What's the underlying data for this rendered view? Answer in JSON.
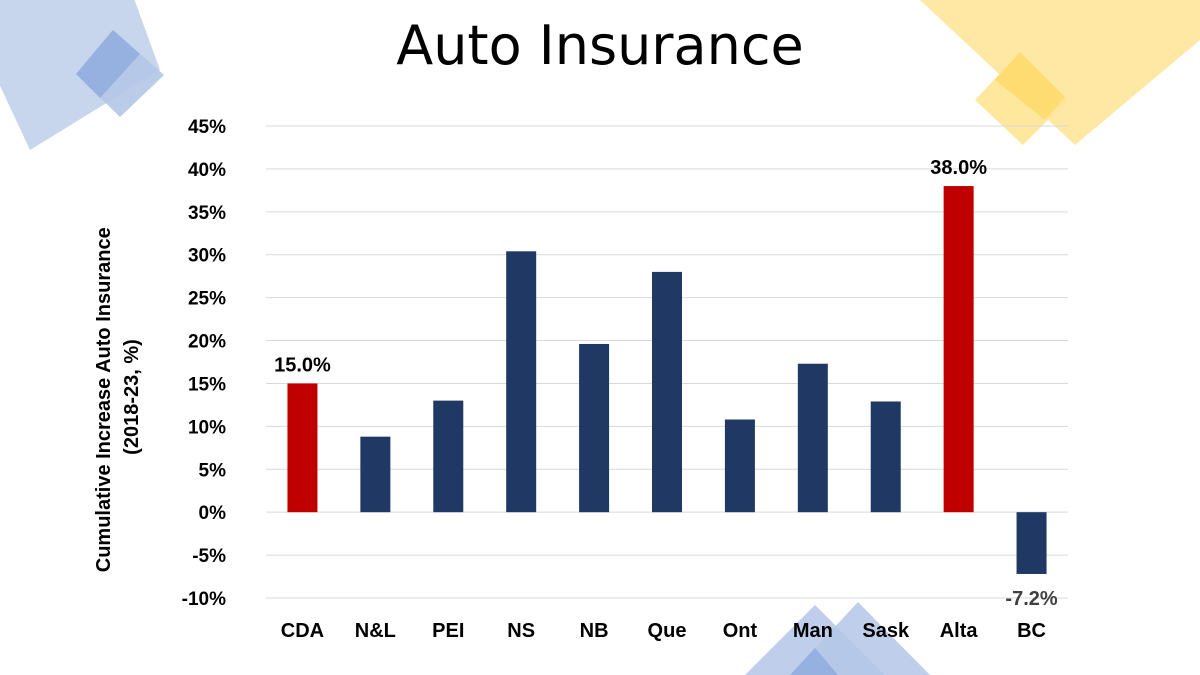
{
  "slide": {
    "title": "Auto Insurance"
  },
  "colors": {
    "bar_default": "#203864",
    "bar_highlight": "#c00000",
    "deco_blue": "#b4c7e7",
    "deco_blue_dark": "#8faadc",
    "deco_yellow": "#ffe699",
    "deco_yellow_dark": "#ffd966",
    "grid": "#d9d9d9"
  },
  "chart_data": {
    "type": "bar",
    "title": "",
    "xlabel": "",
    "ylabel": "Cumulative Increase Auto Insurance (2018-23, %)",
    "ylabel_lines": [
      "Cumulative Increase Auto Insurance",
      "(2018-23, %)"
    ],
    "ylim": [
      -10,
      45
    ],
    "yticks": [
      -10,
      -5,
      0,
      5,
      10,
      15,
      20,
      25,
      30,
      35,
      40,
      45
    ],
    "ytick_labels": [
      "-10%",
      "-5%",
      "0%",
      "5%",
      "10%",
      "15%",
      "20%",
      "25%",
      "30%",
      "35%",
      "40%",
      "45%"
    ],
    "grid": true,
    "legend": "none",
    "categories": [
      "CDA",
      "N&L",
      "PEI",
      "NS",
      "NB",
      "Que",
      "Ont",
      "Man",
      "Sask",
      "Alta",
      "BC"
    ],
    "values": [
      15.0,
      8.8,
      13.0,
      30.4,
      19.6,
      28.0,
      10.8,
      17.3,
      12.9,
      38.0,
      -7.2
    ],
    "highlight": [
      true,
      false,
      false,
      false,
      false,
      false,
      false,
      false,
      false,
      true,
      false
    ],
    "data_labels": [
      "15.0%",
      "",
      "",
      "",
      "",
      "",
      "",
      "",
      "",
      "38.0%",
      "-7.2%"
    ]
  }
}
